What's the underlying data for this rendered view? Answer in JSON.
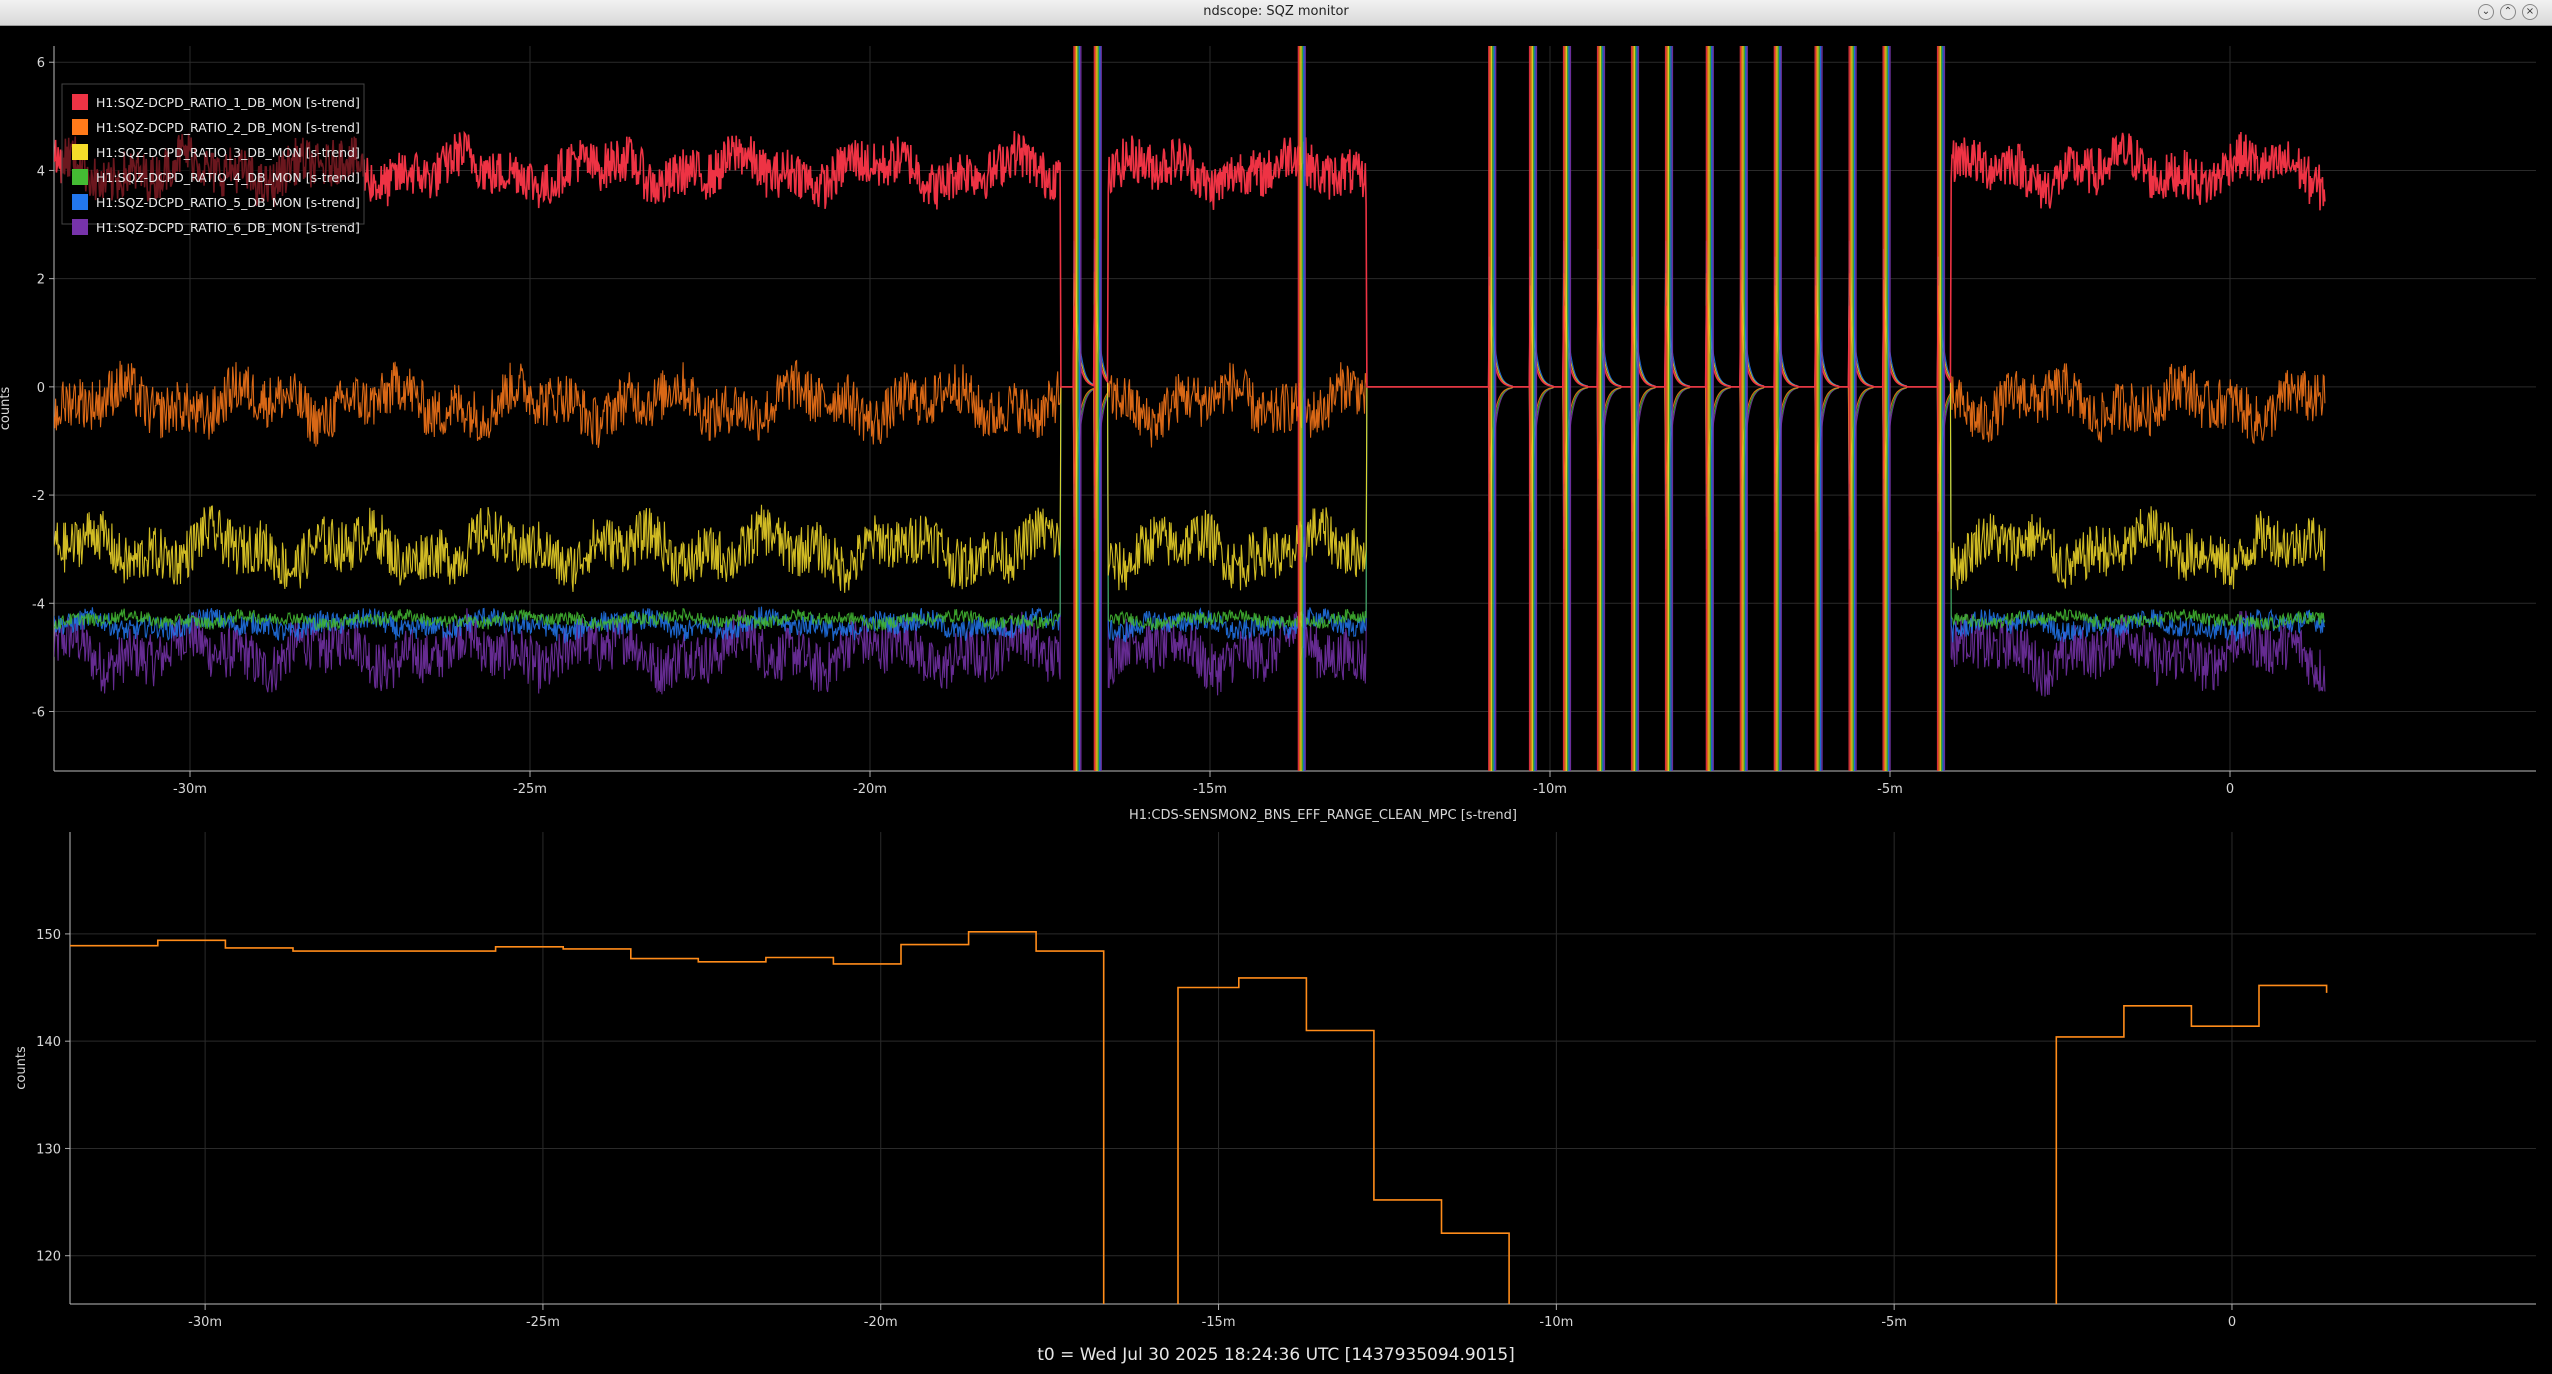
{
  "window": {
    "title": "ndscope: SQZ monitor",
    "buttons": [
      "minimize",
      "maximize",
      "close"
    ]
  },
  "footer": {
    "t0_text": "t0 = Wed Jul 30 2025 18:24:36 UTC [1437935094.9015]"
  },
  "chart_data": [
    {
      "type": "line",
      "title": "",
      "xlabel": "",
      "ylabel": "counts",
      "xlim": [
        -32,
        4.5
      ],
      "ylim": [
        -7.1,
        6.3
      ],
      "x_ticks": [
        -30,
        -25,
        -20,
        -15,
        -10,
        -5,
        0
      ],
      "x_tick_labels": [
        "-30m",
        "-25m",
        "-20m",
        "-15m",
        "-10m",
        "-5m",
        "0"
      ],
      "y_ticks": [
        -6,
        -4,
        -2,
        0,
        2,
        4,
        6
      ],
      "y_tick_labels": [
        "-6",
        "-4",
        "-2",
        "0",
        "2",
        "4",
        "6"
      ],
      "grid": true,
      "legend": "top-left",
      "data_end_x": 1.4,
      "lock_loss_x": -12.7,
      "spike_x": [
        -17.0,
        -16.7,
        -13.7,
        -10.9,
        -10.3,
        -9.8,
        -9.3,
        -8.8,
        -8.3,
        -7.7,
        -7.2,
        -6.7,
        -6.1,
        -5.6,
        -5.1,
        -4.3
      ],
      "series": [
        {
          "name": "H1:SQZ-DCPD_RATIO_1_DB_MON [s-trend]",
          "color": "#ee3344",
          "center": 4.0,
          "spread": 0.55
        },
        {
          "name": "H1:SQZ-DCPD_RATIO_2_DB_MON [s-trend]",
          "color": "#ff7a1a",
          "center": -0.3,
          "spread": 0.6
        },
        {
          "name": "H1:SQZ-DCPD_RATIO_3_DB_MON [s-trend]",
          "color": "#f5dc2a",
          "center": -3.0,
          "spread": 0.6
        },
        {
          "name": "H1:SQZ-DCPD_RATIO_4_DB_MON [s-trend]",
          "color": "#44bb33",
          "center": -4.3,
          "spread": 0.15
        },
        {
          "name": "H1:SQZ-DCPD_RATIO_5_DB_MON [s-trend]",
          "color": "#2277ee",
          "center": -4.4,
          "spread": 0.25
        },
        {
          "name": "H1:SQZ-DCPD_RATIO_6_DB_MON [s-trend]",
          "color": "#7733aa",
          "center": -4.9,
          "spread": 0.6
        }
      ]
    },
    {
      "type": "line",
      "title": "H1:CDS-SENSMON2_BNS_EFF_RANGE_CLEAN_MPC [s-trend]",
      "xlabel": "",
      "ylabel": "counts",
      "xlim": [
        -32,
        4.5
      ],
      "ylim": [
        115.5,
        159.5
      ],
      "x_ticks": [
        -30,
        -25,
        -20,
        -15,
        -10,
        -5,
        0
      ],
      "x_tick_labels": [
        "-30m",
        "-25m",
        "-20m",
        "-15m",
        "-10m",
        "-5m",
        "0"
      ],
      "y_ticks": [
        120,
        130,
        140,
        150
      ],
      "y_tick_labels": [
        "120",
        "130",
        "140",
        "150"
      ],
      "grid": true,
      "series": [
        {
          "name": "H1:CDS-SENSMON2_BNS_EFF_RANGE_CLEAN_MPC [s-trend]",
          "color": "#ff8c1a",
          "segments": [
            [
              [
                -32,
                148.9
              ],
              [
                -30.7,
                148.9
              ],
              [
                -30.7,
                149.4
              ],
              [
                -29.7,
                149.4
              ],
              [
                -29.7,
                148.7
              ],
              [
                -28.7,
                148.7
              ],
              [
                -28.7,
                148.4
              ],
              [
                -25.7,
                148.4
              ],
              [
                -25.7,
                148.8
              ],
              [
                -24.7,
                148.8
              ],
              [
                -24.7,
                148.6
              ],
              [
                -23.7,
                148.6
              ],
              [
                -23.7,
                147.7
              ],
              [
                -22.7,
                147.7
              ],
              [
                -22.7,
                147.4
              ],
              [
                -21.7,
                147.4
              ],
              [
                -21.7,
                147.8
              ],
              [
                -20.7,
                147.8
              ],
              [
                -20.7,
                147.2
              ],
              [
                -19.7,
                147.2
              ],
              [
                -19.7,
                149.0
              ],
              [
                -18.7,
                149.0
              ],
              [
                -18.7,
                150.2
              ],
              [
                -17.7,
                150.2
              ],
              [
                -17.7,
                148.4
              ],
              [
                -16.7,
                148.4
              ],
              [
                -16.7,
                115.5
              ]
            ],
            [
              [
                -15.6,
                115.5
              ],
              [
                -15.6,
                145.0
              ],
              [
                -14.7,
                145.0
              ],
              [
                -14.7,
                145.9
              ],
              [
                -13.7,
                145.9
              ],
              [
                -13.7,
                141.0
              ],
              [
                -12.7,
                141.0
              ],
              [
                -12.7,
                125.2
              ],
              [
                -11.7,
                125.2
              ],
              [
                -11.7,
                122.1
              ],
              [
                -10.7,
                122.1
              ],
              [
                -10.7,
                115.5
              ]
            ],
            [
              [
                -2.6,
                115.5
              ],
              [
                -2.6,
                140.4
              ],
              [
                -1.6,
                140.4
              ],
              [
                -1.6,
                143.3
              ],
              [
                -0.6,
                143.3
              ],
              [
                -0.6,
                141.4
              ],
              [
                0.4,
                141.4
              ],
              [
                0.4,
                145.2
              ],
              [
                1.4,
                145.2
              ],
              [
                1.4,
                144.5
              ]
            ]
          ]
        }
      ]
    }
  ]
}
